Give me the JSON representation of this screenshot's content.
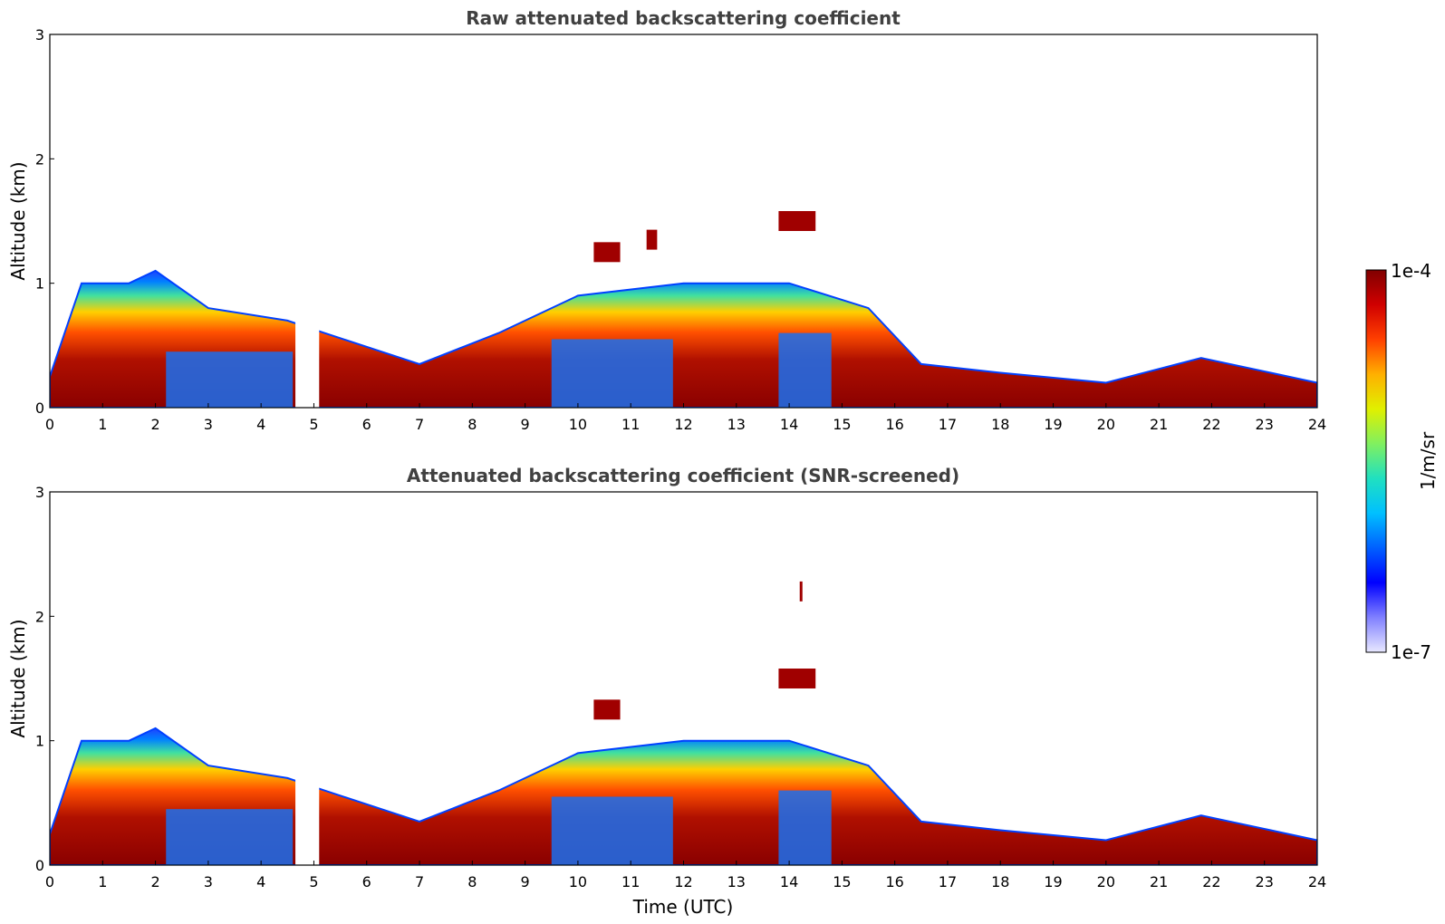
{
  "chart_data": [
    {
      "type": "heatmap",
      "title": "Raw attenuated backscattering coefficient",
      "xlabel": "",
      "ylabel": "Altitude (km)",
      "xlim": [
        0,
        24
      ],
      "ylim": [
        0,
        3
      ],
      "xticks": [
        "0",
        "1",
        "2",
        "3",
        "4",
        "5",
        "6",
        "7",
        "8",
        "9",
        "10",
        "11",
        "12",
        "13",
        "14",
        "15",
        "16",
        "17",
        "18",
        "19",
        "20",
        "21",
        "22",
        "23",
        "24"
      ],
      "yticks": [
        "0",
        "1",
        "2",
        "3"
      ],
      "data_gap_utc": [
        4.65,
        5.1
      ],
      "elevated_layers": [
        {
          "start_utc": 13.8,
          "end_utc": 14.5,
          "altitude_km": 1.5
        },
        {
          "start_utc": 10.3,
          "end_utc": 10.8,
          "altitude_km": 1.25
        },
        {
          "start_utc": 11.3,
          "end_utc": 11.5,
          "altitude_km": 1.35
        }
      ],
      "boundary_layer_top_km": [
        {
          "utc": 0,
          "top": 0.25
        },
        {
          "utc": 0.6,
          "top": 1.0
        },
        {
          "utc": 1.5,
          "top": 1.0
        },
        {
          "utc": 2.0,
          "top": 1.1
        },
        {
          "utc": 3.0,
          "top": 0.8
        },
        {
          "utc": 4.5,
          "top": 0.7
        },
        {
          "utc": 5.2,
          "top": 0.6
        },
        {
          "utc": 7,
          "top": 0.35
        },
        {
          "utc": 8.5,
          "top": 0.6
        },
        {
          "utc": 10,
          "top": 0.9
        },
        {
          "utc": 12,
          "top": 1.0
        },
        {
          "utc": 14,
          "top": 1.0
        },
        {
          "utc": 15.5,
          "top": 0.8
        },
        {
          "utc": 16.5,
          "top": 0.35
        },
        {
          "utc": 18,
          "top": 0.28
        },
        {
          "utc": 20,
          "top": 0.2
        },
        {
          "utc": 21.8,
          "top": 0.4
        },
        {
          "utc": 24,
          "top": 0.2
        }
      ]
    },
    {
      "type": "heatmap",
      "title": "Attenuated backscattering coefficient (SNR-screened)",
      "xlabel": "Time (UTC)",
      "ylabel": "Altitude (km)",
      "xlim": [
        0,
        24
      ],
      "ylim": [
        0,
        3
      ],
      "xticks": [
        "0",
        "1",
        "2",
        "3",
        "4",
        "5",
        "6",
        "7",
        "8",
        "9",
        "10",
        "11",
        "12",
        "13",
        "14",
        "15",
        "16",
        "17",
        "18",
        "19",
        "20",
        "21",
        "22",
        "23",
        "24"
      ],
      "yticks": [
        "0",
        "1",
        "2",
        "3"
      ],
      "data_gap_utc": [
        4.65,
        5.1
      ],
      "elevated_layers": [
        {
          "start_utc": 13.8,
          "end_utc": 14.5,
          "altitude_km": 1.5
        },
        {
          "start_utc": 10.3,
          "end_utc": 10.8,
          "altitude_km": 1.25
        },
        {
          "start_utc": 14.2,
          "end_utc": 14.25,
          "altitude_km": 2.2
        }
      ]
    }
  ],
  "colorbar": {
    "label": "1/m/sr",
    "max_label": "1e-4",
    "min_label": "1e-7",
    "scale": "log",
    "colors": [
      "#e8e8ff",
      "#8080ff",
      "#0000ff",
      "#0060ff",
      "#00c0ff",
      "#20e0c0",
      "#80f060",
      "#e0f000",
      "#ffb000",
      "#ff4000",
      "#d00000",
      "#800000"
    ]
  }
}
